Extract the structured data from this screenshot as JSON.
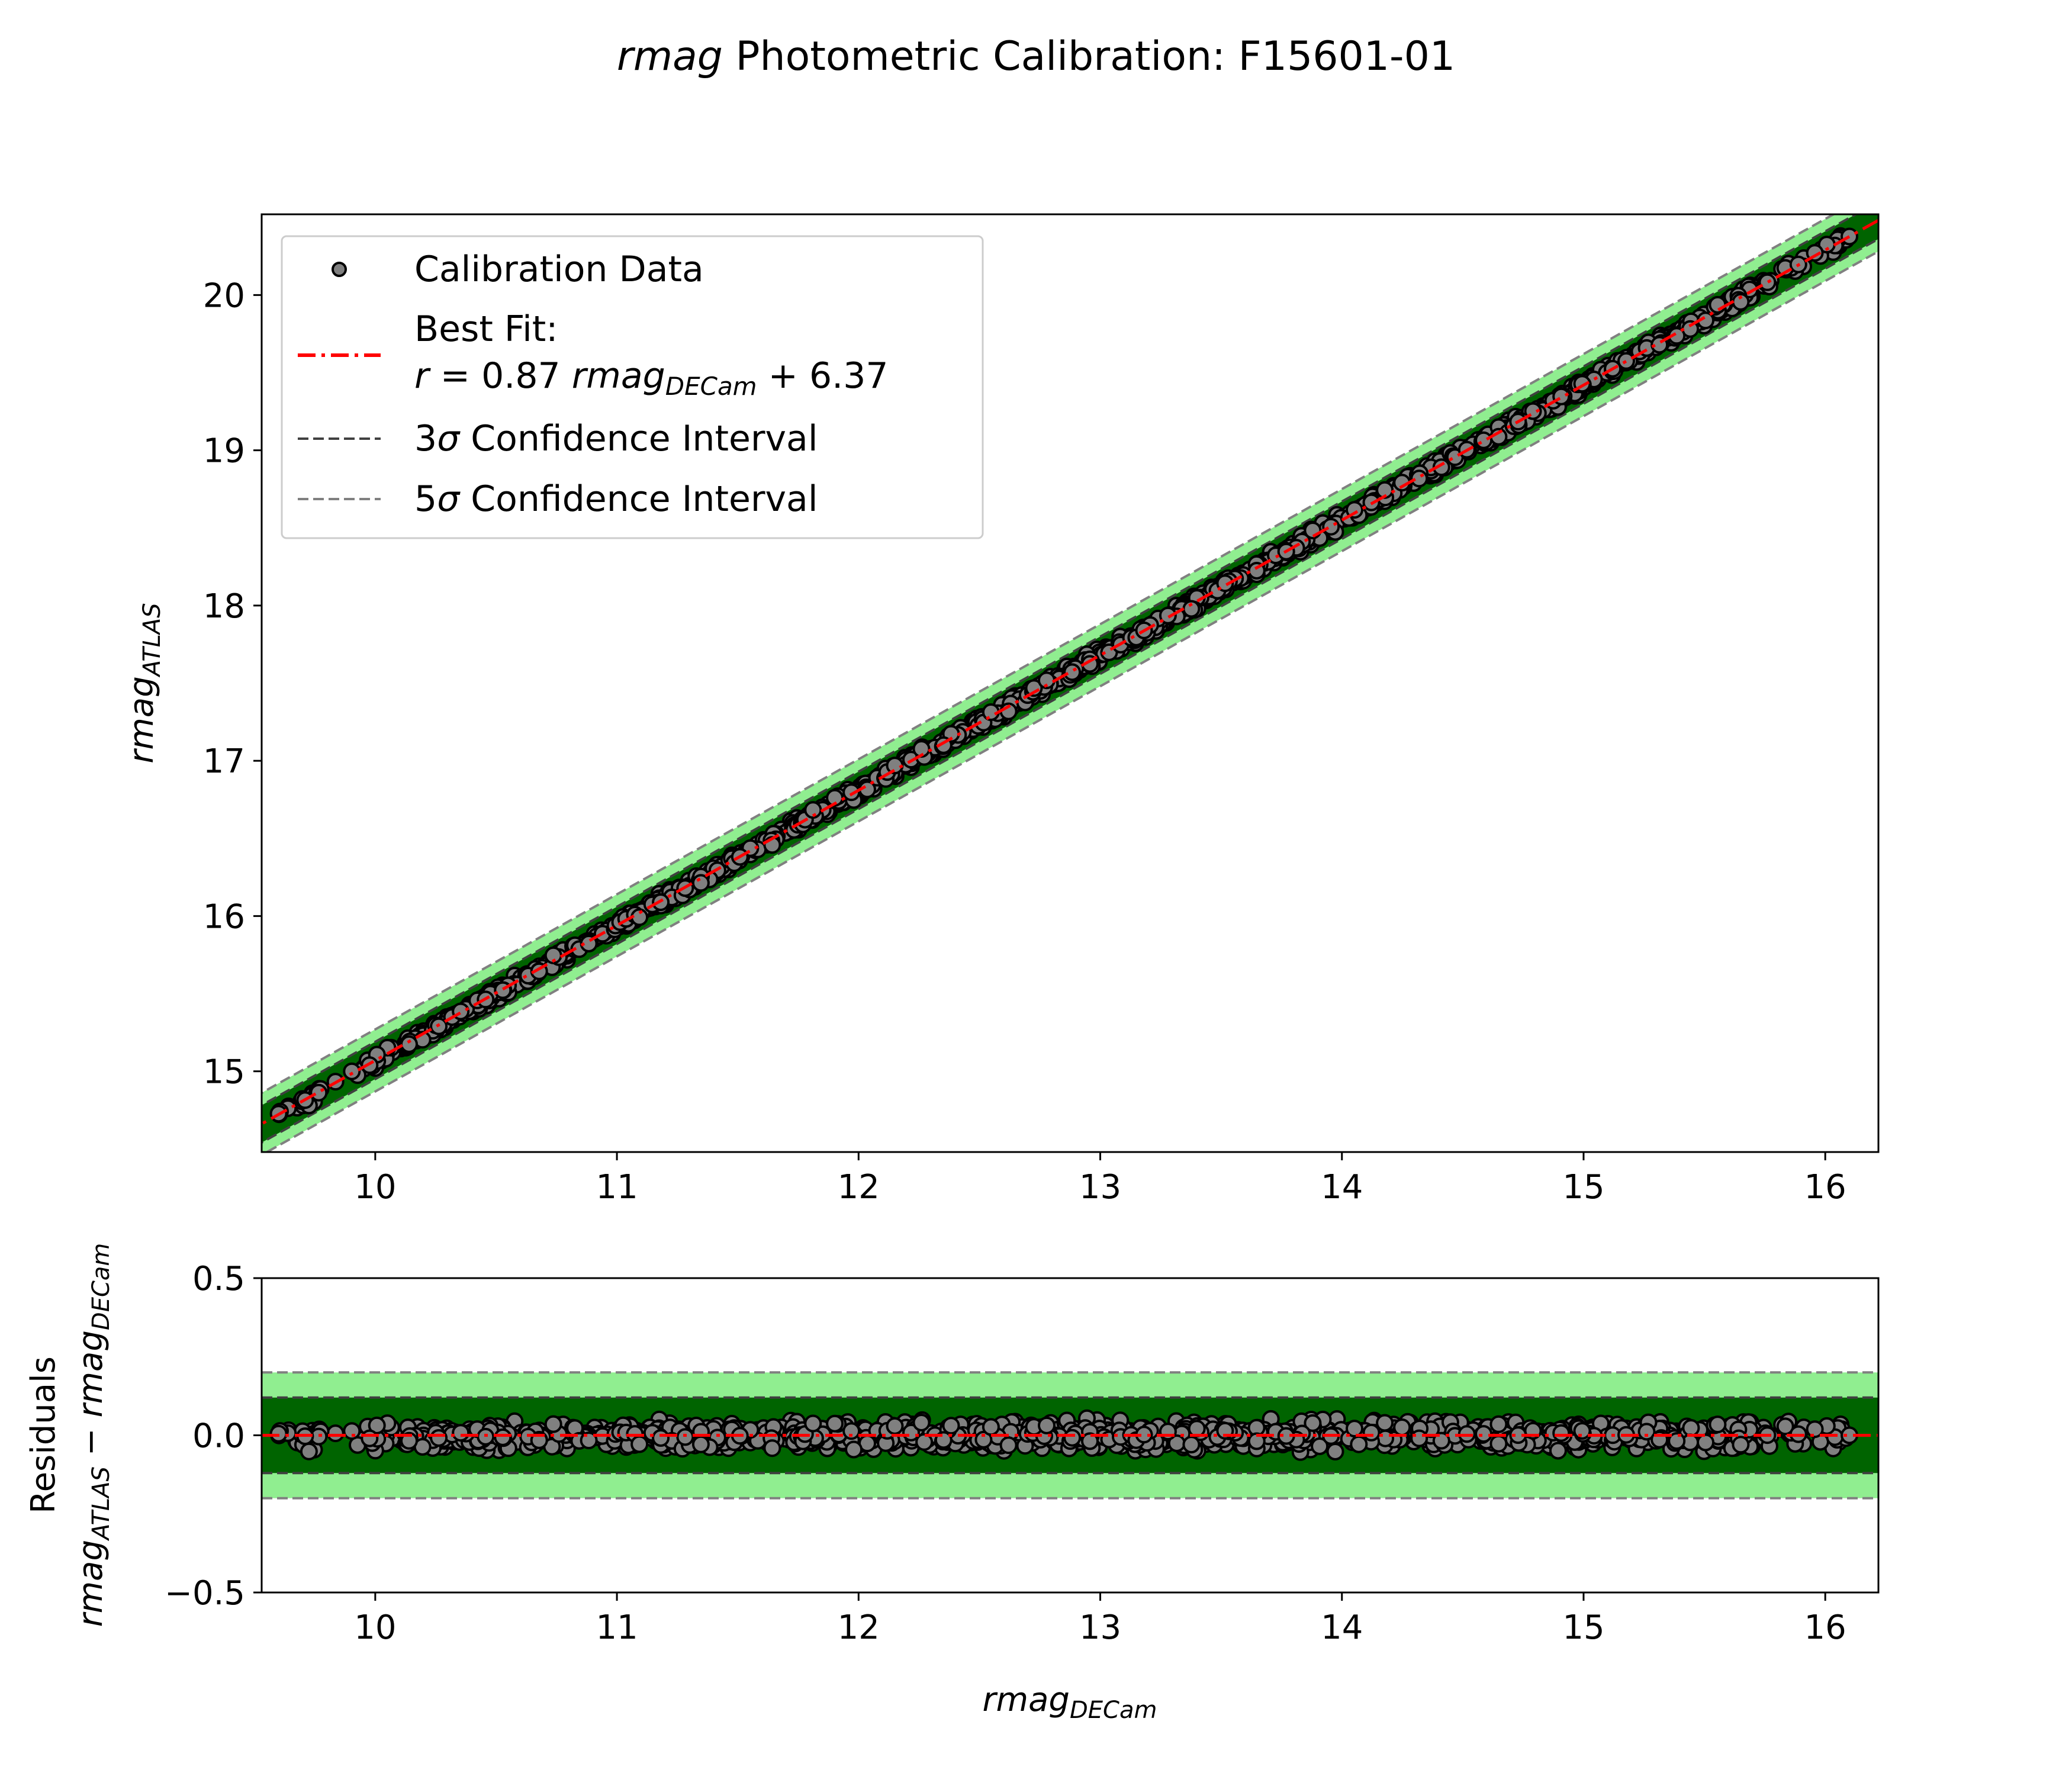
{
  "chart_data": [
    {
      "type": "scatter",
      "title_italic": "rmag",
      "title_rest": " Photometric Calibration: F15601-01",
      "xlabel": "",
      "ylabel": {
        "base": "rmag",
        "sub": "ATLAS"
      },
      "xlim": [
        9.53,
        16.22
      ],
      "ylim": [
        14.48,
        20.52
      ],
      "xticks": [
        10,
        11,
        12,
        13,
        14,
        15,
        16
      ],
      "yticks": [
        15,
        16,
        17,
        18,
        19,
        20
      ],
      "fit": {
        "slope": 0.87,
        "intercept": 6.37
      },
      "bands": {
        "sigma3": 0.12,
        "sigma5": 0.2
      },
      "x_range": [
        9.6,
        16.1
      ],
      "point_count": 1500,
      "point_spread": 0.06,
      "grid": false,
      "legend": {
        "position": "top-left",
        "entries": [
          {
            "label": "Calibration Data"
          },
          {
            "label_line1": "Best Fit:",
            "eq_r": "r",
            "eq_a": " = 0.87 ",
            "eq_b": "rmag",
            "eq_sub": "DECam",
            "eq_c": " + 6.37"
          },
          {
            "label_num": "3",
            "label_sigma": "σ",
            "label_rest": " Confidence Interval"
          },
          {
            "label_num": "5",
            "label_sigma": "σ",
            "label_rest": " Confidence Interval"
          }
        ]
      }
    },
    {
      "type": "scatter",
      "title": "",
      "xlabel": {
        "base": "rmag",
        "sub": "DECam"
      },
      "ylabel": {
        "line1": "Residuals",
        "base1": "rmag",
        "sub1": "ATLAS",
        "minus": " − ",
        "base2": "rmag",
        "sub2": "DECam"
      },
      "xlim": [
        9.53,
        16.22
      ],
      "ylim": [
        -0.5,
        0.5
      ],
      "xticks": [
        10,
        11,
        12,
        13,
        14,
        15,
        16
      ],
      "yticks": [
        0.5,
        0.0,
        -0.5
      ],
      "ytick_labels": [
        "0.5",
        "0.0",
        "−0.5"
      ],
      "zero_line": 0,
      "bands": {
        "sigma3": 0.12,
        "sigma5": 0.2
      },
      "grid": false
    }
  ],
  "colors": {
    "band_dark": "#006400",
    "band_light": "#90ee90",
    "dash_3sigma": "#404040",
    "dash_5sigma": "#808080",
    "fit_line": "#ff0000",
    "point_face": "#808080",
    "point_edge": "#000000"
  }
}
